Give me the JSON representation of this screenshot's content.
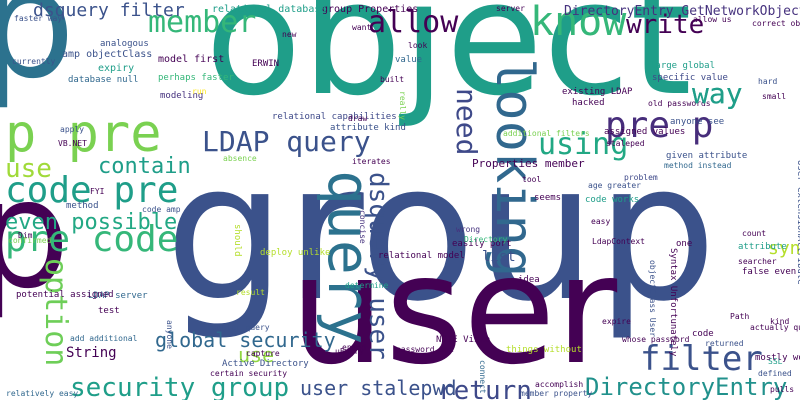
{
  "words": [
    {
      "text": "object",
      "color": "#1f9e89"
    },
    {
      "text": "group",
      "color": "#3b528b"
    },
    {
      "text": "user",
      "color": "#440154"
    },
    {
      "text": "p",
      "color": "#2c728e"
    },
    {
      "text": "p",
      "color": "#440154"
    },
    {
      "text": "query",
      "color": "#2c728e"
    },
    {
      "text": "looking",
      "color": "#31688e"
    },
    {
      "text": "member",
      "color": "#35b779"
    },
    {
      "text": "p pre",
      "color": "#7ad151"
    },
    {
      "text": "pre p",
      "color": "#472d7b"
    },
    {
      "text": "code pre",
      "color": "#1f9e89"
    },
    {
      "text": "pre code",
      "color": "#35b779"
    },
    {
      "text": "LDAP query",
      "color": "#3b528b"
    },
    {
      "text": "know",
      "color": "#35b779"
    },
    {
      "text": "allow",
      "color": "#440154"
    },
    {
      "text": "using",
      "color": "#22a884"
    },
    {
      "text": "filter",
      "color": "#3b528b"
    },
    {
      "text": "option",
      "color": "#6ece58"
    },
    {
      "text": "dsquery user",
      "color": "#3b528b"
    },
    {
      "text": "security group",
      "color": "#1f9e89"
    },
    {
      "text": "DirectoryEntry",
      "color": "#21918c"
    },
    {
      "text": "return",
      "color": "#3e4989"
    },
    {
      "text": "write",
      "color": "#440154"
    },
    {
      "text": "way",
      "color": "#20a486"
    },
    {
      "text": "need",
      "color": "#3e4989"
    },
    {
      "text": "use",
      "color": "#a0da39"
    },
    {
      "text": "contain",
      "color": "#1f9e89"
    },
    {
      "text": "even possible",
      "color": "#22a884"
    },
    {
      "text": "global security",
      "color": "#31688e"
    },
    {
      "text": "dsquery filter",
      "color": "#3b528b"
    },
    {
      "text": "syntax",
      "color": "#b5de2b"
    },
    {
      "text": "user stalepwd",
      "color": "#3b528b"
    },
    {
      "text": "use",
      "color": "#90d743"
    },
    {
      "text": "String",
      "color": "#440154"
    },
    {
      "text": "list",
      "color": "#3b528b"
    },
    {
      "text": "DirectoryEntry GetNetworkObject",
      "color": "#46327e"
    },
    {
      "text": "Properties member",
      "color": "#440154"
    },
    {
      "text": "group Properties",
      "color": "#440154"
    },
    {
      "text": "relational database",
      "color": "#1f9e89"
    },
    {
      "text": "amp objectClass",
      "color": "#3b528b"
    },
    {
      "text": "model first",
      "color": "#440154"
    },
    {
      "text": "expiry",
      "color": "#1f9e89"
    },
    {
      "text": "database null",
      "color": "#31688e"
    },
    {
      "text": "perhaps faster",
      "color": "#35b779"
    },
    {
      "text": "analogous",
      "color": "#3b528b"
    },
    {
      "text": "modeling",
      "color": "#46327e"
    },
    {
      "text": "ERWIN",
      "color": "#440154"
    },
    {
      "text": "relational capabilities",
      "color": "#3e4989"
    },
    {
      "text": "attribute kind",
      "color": "#3b528b"
    },
    {
      "text": "existing LDAP",
      "color": "#440154"
    },
    {
      "text": "hacked",
      "color": "#440154"
    },
    {
      "text": "large global",
      "color": "#1f9e89"
    },
    {
      "text": "specific value",
      "color": "#3e4989"
    },
    {
      "text": "old passwords",
      "color": "#440154"
    },
    {
      "text": "anyone see",
      "color": "#3b528b"
    },
    {
      "text": "assigned values",
      "color": "#440154"
    },
    {
      "text": "staleped",
      "color": "#440154"
    },
    {
      "text": "given attribute",
      "color": "#3b528b"
    },
    {
      "text": "method instead",
      "color": "#31688e"
    },
    {
      "text": "additional filters",
      "color": "#7ad151"
    },
    {
      "text": "problem",
      "color": "#3e4989"
    },
    {
      "text": "age greater",
      "color": "#3b528b"
    },
    {
      "text": "code works",
      "color": "#1f9e89"
    },
    {
      "text": "easily port",
      "color": "#440154"
    },
    {
      "text": "wrong",
      "color": "#46327e"
    },
    {
      "text": "seems",
      "color": "#440154"
    },
    {
      "text": "tool",
      "color": "#440154"
    },
    {
      "text": "concise",
      "color": "#46327e"
    },
    {
      "text": "iterates",
      "color": "#440154"
    },
    {
      "text": "Directory",
      "color": "#35b779"
    },
    {
      "text": "relational model",
      "color": "#440154"
    },
    {
      "text": "deploy unlike",
      "color": "#b5de2b"
    },
    {
      "text": "determine",
      "color": "#1f9e89"
    },
    {
      "text": "result",
      "color": "#b5de2b"
    },
    {
      "text": "regular query",
      "color": "#3b528b"
    },
    {
      "text": "anyone",
      "color": "#3b528b"
    },
    {
      "text": "LDAP server",
      "color": "#31688e"
    },
    {
      "text": "potential assigned",
      "color": "#440154"
    },
    {
      "text": "test",
      "color": "#440154"
    },
    {
      "text": "add additional",
      "color": "#31688e"
    },
    {
      "text": "method",
      "color": "#3b528b"
    },
    {
      "text": "code amp",
      "color": "#3b528b"
    },
    {
      "text": "FYI",
      "color": "#440154"
    },
    {
      "text": "Dim",
      "color": "#440154"
    },
    {
      "text": "confirmed",
      "color": "#7ad151"
    },
    {
      "text": "relatively easy",
      "color": "#31688e"
    },
    {
      "text": "capture",
      "color": "#440154"
    },
    {
      "text": "Active Directory",
      "color": "#3b528b"
    },
    {
      "text": "certain security",
      "color": "#440154"
    },
    {
      "text": "NOTE Visio",
      "color": "#440154"
    },
    {
      "text": "uEntry",
      "color": "#440154"
    },
    {
      "text": "password age",
      "color": "#440154"
    },
    {
      "text": "ended",
      "color": "#440154"
    },
    {
      "text": "things without",
      "color": "#b5de2b"
    },
    {
      "text": "connect",
      "color": "#31688e"
    },
    {
      "text": "idea",
      "color": "#440154"
    },
    {
      "text": "whose password",
      "color": "#440154"
    },
    {
      "text": "code",
      "color": "#440154"
    },
    {
      "text": "returned",
      "color": "#3b528b"
    },
    {
      "text": "accomplish",
      "color": "#440154"
    },
    {
      "text": "member property",
      "color": "#3b528b"
    },
    {
      "text": "pulls",
      "color": "#440154"
    },
    {
      "text": "defined",
      "color": "#3b528b"
    },
    {
      "text": "SSL",
      "color": "#1f9e89"
    },
    {
      "text": "mostly worked",
      "color": "#440154"
    },
    {
      "text": "actually query",
      "color": "#440154"
    },
    {
      "text": "kind",
      "color": "#440154"
    },
    {
      "text": "Path",
      "color": "#440154"
    },
    {
      "text": "false even",
      "color": "#440154"
    },
    {
      "text": "attribute",
      "color": "#1f9e89"
    },
    {
      "text": "searcher",
      "color": "#440154"
    },
    {
      "text": "count",
      "color": "#440154"
    },
    {
      "text": "User extensionAttribute",
      "color": "#3b528b"
    },
    {
      "text": "LdapContext",
      "color": "#440154"
    },
    {
      "text": "easy",
      "color": "#440154"
    },
    {
      "text": "one",
      "color": "#440154"
    },
    {
      "text": "objectClass User",
      "color": "#3b528b"
    },
    {
      "text": "expire",
      "color": "#440154"
    },
    {
      "text": "Syntax Unfortunately",
      "color": "#440154"
    },
    {
      "text": "allow us",
      "color": "#440154"
    },
    {
      "text": "hard",
      "color": "#3b528b"
    },
    {
      "text": "small",
      "color": "#440154"
    },
    {
      "text": "server",
      "color": "#440154"
    },
    {
      "text": "look",
      "color": "#440154"
    },
    {
      "text": "built",
      "color": "#440154"
    },
    {
      "text": "really",
      "color": "#7ad151"
    },
    {
      "text": "draw",
      "color": "#440154"
    },
    {
      "text": "value",
      "color": "#31688e"
    },
    {
      "text": "want",
      "color": "#440154"
    },
    {
      "text": "new",
      "color": "#440154"
    },
    {
      "text": "faster way",
      "color": "#3b528b"
    },
    {
      "text": "currently",
      "color": "#3b528b"
    },
    {
      "text": "apply",
      "color": "#3b528b"
    },
    {
      "text": "VB.NET",
      "color": "#440154"
    },
    {
      "text": "absence",
      "color": "#7ad151"
    },
    {
      "text": "should",
      "color": "#b5de2b"
    },
    {
      "text": "correct object",
      "color": "#440154"
    },
    {
      "text": "run",
      "color": "#fde725"
    },
    {
      "text": "way",
      "color": "#1f9e89"
    }
  ]
}
